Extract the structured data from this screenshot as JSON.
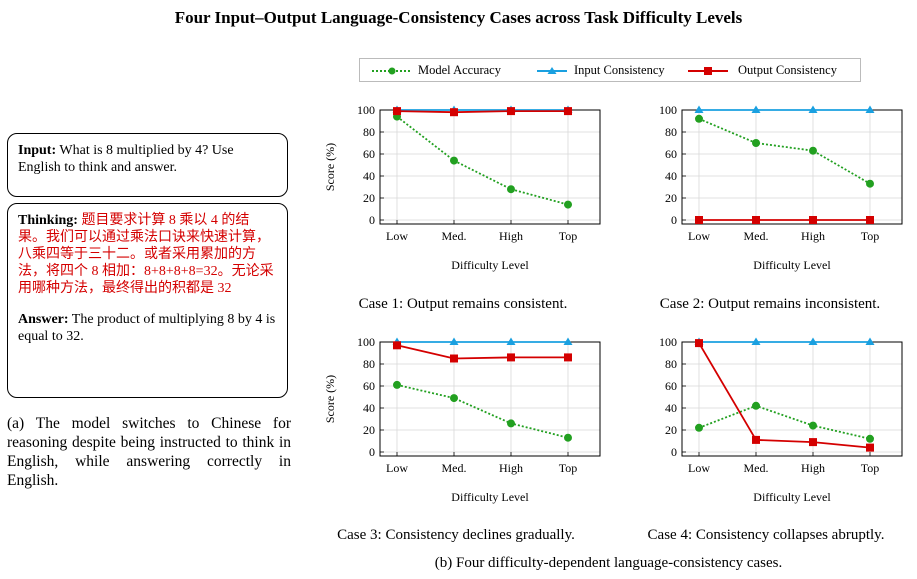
{
  "title": "Four Input–Output Language-Consistency Cases across Task Difficulty Levels",
  "panel_a": {
    "input_label": "Input:",
    "input_text": "What is 8 multiplied by 4? Use English to think and answer.",
    "thinking_label": "Thinking:",
    "thinking_text": "题目要求计算 8 乘以 4 的结果。我们可以通过乘法口诀来快速计算，八乘四等于三十二。或者采用累加的方法，将四个 8 相加：8+8+8+8=32。无论采用哪种方法，最终得出的积都是 32",
    "answer_label": "Answer:",
    "answer_text": "The product of multiplying 8 by 4 is equal to 32.",
    "caption": "(a) The model switches to Chinese for reasoning despite being instructed to think in English, while answering correctly in English.",
    "colors": {
      "thinking": "#d40000"
    }
  },
  "legend": [
    "Model Accuracy",
    "Input Consistency",
    "Output Consistency"
  ],
  "series_colors": {
    "Model Accuracy": "#22a020",
    "Input Consistency": "#1aa0e0",
    "Output Consistency": "#d40000"
  },
  "main_caption": "(b) Four difficulty-dependent language-consistency cases.",
  "chart_data": [
    {
      "type": "line",
      "caption": "Case 1: Output remains consistent.",
      "categories": [
        "Low",
        "Med.",
        "High",
        "Top"
      ],
      "xlabel": "Difficulty Level",
      "ylabel": "Score (%)",
      "ylim": [
        0,
        100
      ],
      "yticks": [
        0,
        20,
        40,
        60,
        80,
        100
      ],
      "series": [
        {
          "name": "Model Accuracy",
          "values": [
            94,
            54,
            28,
            14
          ]
        },
        {
          "name": "Input Consistency",
          "values": [
            100,
            100,
            100,
            100
          ]
        },
        {
          "name": "Output Consistency",
          "values": [
            99,
            98,
            99,
            99
          ]
        }
      ]
    },
    {
      "type": "line",
      "caption": "Case 2: Output remains inconsistent.",
      "categories": [
        "Low",
        "Med.",
        "High",
        "Top"
      ],
      "xlabel": "Difficulty Level",
      "ylabel": "",
      "ylim": [
        0,
        100
      ],
      "yticks": [
        0,
        20,
        40,
        60,
        80,
        100
      ],
      "series": [
        {
          "name": "Model Accuracy",
          "values": [
            92,
            70,
            63,
            33
          ]
        },
        {
          "name": "Input Consistency",
          "values": [
            100,
            100,
            100,
            100
          ]
        },
        {
          "name": "Output Consistency",
          "values": [
            0,
            0,
            0,
            0
          ]
        }
      ]
    },
    {
      "type": "line",
      "caption": "Case 3: Consistency declines gradually.",
      "categories": [
        "Low",
        "Med.",
        "High",
        "Top"
      ],
      "xlabel": "Difficulty Level",
      "ylabel": "Score (%)",
      "ylim": [
        0,
        100
      ],
      "yticks": [
        0,
        20,
        40,
        60,
        80,
        100
      ],
      "series": [
        {
          "name": "Model Accuracy",
          "values": [
            61,
            49,
            26,
            13
          ]
        },
        {
          "name": "Input Consistency",
          "values": [
            100,
            100,
            100,
            100
          ]
        },
        {
          "name": "Output Consistency",
          "values": [
            97,
            85,
            86,
            86
          ]
        }
      ]
    },
    {
      "type": "line",
      "caption": "Case 4: Consistency collapses abruptly.",
      "categories": [
        "Low",
        "Med.",
        "High",
        "Top"
      ],
      "xlabel": "Difficulty Level",
      "ylabel": "",
      "ylim": [
        0,
        100
      ],
      "yticks": [
        0,
        20,
        40,
        60,
        80,
        100
      ],
      "series": [
        {
          "name": "Model Accuracy",
          "values": [
            22,
            42,
            24,
            12
          ]
        },
        {
          "name": "Input Consistency",
          "values": [
            100,
            100,
            100,
            100
          ]
        },
        {
          "name": "Output Consistency",
          "values": [
            99,
            11,
            9,
            4
          ]
        }
      ]
    }
  ]
}
